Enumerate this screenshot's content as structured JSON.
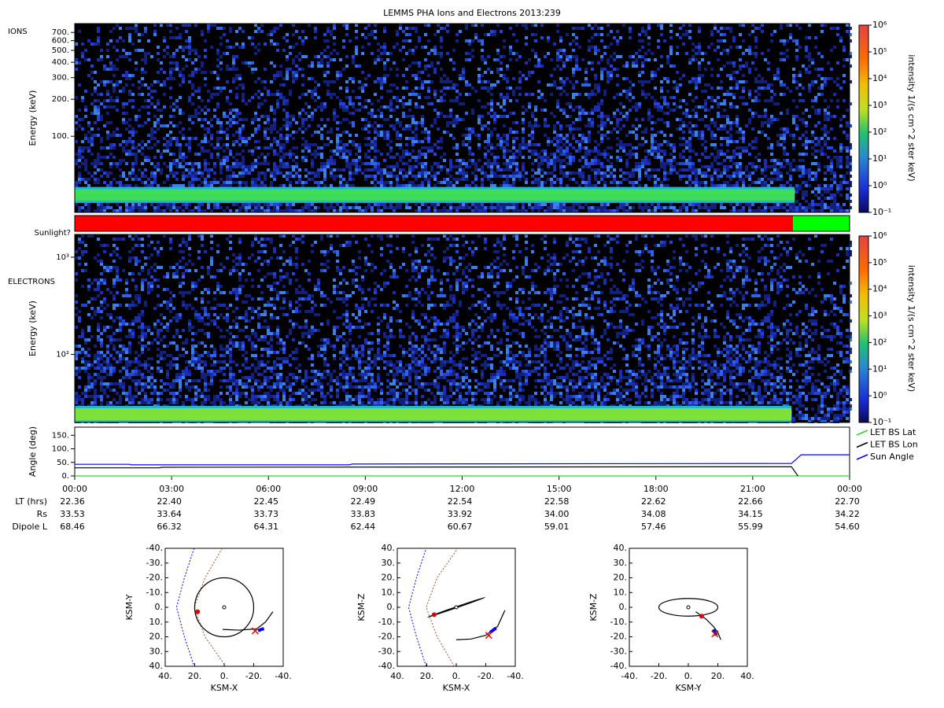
{
  "title": "LEMMS PHA Ions and Electrons  2013:239",
  "chart_data": [
    {
      "type": "spectrogram",
      "panel_label": "IONS",
      "ylabel": "Energy (keV)",
      "log_y": true,
      "xlim": [
        0,
        24
      ],
      "ylim": [
        24,
        826
      ],
      "yticks": [
        {
          "value": 100,
          "label": "100."
        },
        {
          "value": 200,
          "label": "200."
        },
        {
          "value": 300,
          "label": "300."
        },
        {
          "value": 400,
          "label": "400."
        },
        {
          "value": 500,
          "label": "500."
        },
        {
          "value": 600,
          "label": "600."
        },
        {
          "value": 700,
          "label": "700."
        }
      ],
      "band": {
        "energy": [
          30,
          37
        ],
        "end_hour": 22.3,
        "color": "#3fdc5a"
      },
      "colorbar": {
        "label": "intensity 1/(s cm^2 ster keV)",
        "lim": [
          0.1,
          1000000
        ],
        "ticks": [
          {
            "value": 0.1,
            "label": "10⁻¹"
          },
          {
            "value": 1,
            "label": "10⁰"
          },
          {
            "value": 10,
            "label": "10¹"
          },
          {
            "value": 100,
            "label": "10²"
          },
          {
            "value": 1000,
            "label": "10³"
          },
          {
            "value": 10000,
            "label": "10⁴"
          },
          {
            "value": 100000,
            "label": "10⁵"
          },
          {
            "value": 1000000,
            "label": "10⁶"
          }
        ]
      }
    },
    {
      "type": "timeline",
      "label": "Sunlight?",
      "xlim": [
        0,
        24
      ],
      "segments": [
        {
          "start": 0,
          "end": 22.25,
          "color": "#ff0000"
        },
        {
          "start": 22.25,
          "end": 24,
          "color": "#00ff00"
        }
      ]
    },
    {
      "type": "spectrogram",
      "panel_label": "ELECTRONS",
      "ylabel": "Energy (keV)",
      "log_y": true,
      "xlim": [
        0,
        24
      ],
      "ylim": [
        20,
        1714
      ],
      "yticks": [
        {
          "value": 100,
          "label": "10²"
        },
        {
          "value": 1000,
          "label": "10³"
        }
      ],
      "band": {
        "energy": [
          21,
          28
        ],
        "end_hour": 22.2,
        "color": "#7ee03a"
      },
      "colorbar": {
        "label": "intensity 1/(s cm^2 ster keV)",
        "lim": [
          0.1,
          1000000
        ],
        "ticks": [
          {
            "value": 0.1,
            "label": "10⁻¹"
          },
          {
            "value": 1,
            "label": "10⁰"
          },
          {
            "value": 10,
            "label": "10¹"
          },
          {
            "value": 100,
            "label": "10²"
          },
          {
            "value": 1000,
            "label": "10³"
          },
          {
            "value": 10000,
            "label": "10⁴"
          },
          {
            "value": 100000,
            "label": "10⁵"
          },
          {
            "value": 1000000,
            "label": "10⁶"
          }
        ]
      }
    },
    {
      "type": "line",
      "ylabel": "Angle (deg)",
      "xlim": [
        0,
        24
      ],
      "ylim": [
        0,
        180
      ],
      "yticks": [
        {
          "value": 0,
          "label": "0."
        },
        {
          "value": 50,
          "label": "50."
        },
        {
          "value": 100,
          "label": "100."
        },
        {
          "value": 150,
          "label": "150."
        }
      ],
      "xticks": [
        {
          "value": 0,
          "label": "00:00"
        },
        {
          "value": 3,
          "label": "03:00"
        },
        {
          "value": 6,
          "label": "06:00"
        },
        {
          "value": 9,
          "label": "09:00"
        },
        {
          "value": 12,
          "label": "12:00"
        },
        {
          "value": 15,
          "label": "15:00"
        },
        {
          "value": 18,
          "label": "18:00"
        },
        {
          "value": 21,
          "label": "21:00"
        },
        {
          "value": 24,
          "label": "00:00"
        }
      ],
      "series": [
        {
          "name": "LET BS Lat",
          "color": "#22dd22",
          "x": [
            0,
            24
          ],
          "values": [
            0,
            0
          ]
        },
        {
          "name": "LET BS Lon",
          "color": "#000000",
          "x": [
            0,
            2.6,
            2.7,
            22.2,
            22.4
          ],
          "values": [
            30,
            30,
            32,
            34,
            0
          ]
        },
        {
          "name": "Sun Angle",
          "color": "#0000ff",
          "x": [
            0,
            1.7,
            1.75,
            8.5,
            8.6,
            22.2,
            22.5,
            24
          ],
          "values": [
            43,
            43,
            41,
            41,
            44,
            46,
            78,
            78
          ]
        }
      ]
    },
    {
      "type": "orbit",
      "xlabel": "KSM-X",
      "ylabel": "KSM-Y",
      "xlim": [
        40,
        -40
      ],
      "ylim": [
        40,
        -40
      ],
      "xticks": [
        {
          "value": 40,
          "label": "40."
        },
        {
          "value": 20,
          "label": "20."
        },
        {
          "value": 0,
          "label": "0."
        },
        {
          "value": -20,
          "label": "-20."
        },
        {
          "value": -40,
          "label": "-40."
        }
      ],
      "yticks": [
        {
          "value": -40,
          "label": "-40."
        },
        {
          "value": -30,
          "label": "-30."
        },
        {
          "value": -20,
          "label": "-20."
        },
        {
          "value": -10,
          "label": "-10."
        },
        {
          "value": 0,
          "label": "0."
        },
        {
          "value": 10,
          "label": "10."
        },
        {
          "value": 20,
          "label": "20."
        },
        {
          "value": 30,
          "label": "30."
        },
        {
          "value": 40,
          "label": "40."
        }
      ],
      "boundaries": [
        {
          "color": "#0000ff",
          "x": [
            20.4,
            27,
            32.3,
            27,
            20.4
          ],
          "y": [
            -40,
            -20,
            0,
            20,
            40
          ]
        },
        {
          "color": "#a0522d",
          "x": [
            1.3,
            13,
            20.4,
            13,
            -1
          ],
          "y": [
            -40,
            -20,
            0,
            20,
            40
          ]
        }
      ],
      "planet": [
        0,
        0
      ],
      "ring": {
        "rx": 20,
        "ry": 20,
        "rot": 0
      },
      "trajectory": {
        "color": "#000000",
        "x": [
          1,
          -10,
          -22,
          -28,
          -33
        ],
        "y": [
          15,
          15.5,
          14.6,
          10,
          3
        ]
      },
      "spacecraft": {
        "color": "#0000ff",
        "x": [
          -23,
          -25,
          -27
        ],
        "y": [
          16,
          15,
          14.5
        ]
      },
      "moon": [
        18,
        3
      ],
      "marker": [
        -21,
        16
      ]
    },
    {
      "type": "orbit",
      "xlabel": "KSM-X",
      "ylabel": "KSM-Z",
      "xlim": [
        40,
        -40
      ],
      "ylim": [
        -40,
        40
      ],
      "xticks": [
        {
          "value": 40,
          "label": "40."
        },
        {
          "value": 20,
          "label": "20."
        },
        {
          "value": 0,
          "label": "0."
        },
        {
          "value": -20,
          "label": "-20."
        },
        {
          "value": -40,
          "label": "-40."
        }
      ],
      "yticks": [
        {
          "value": 40,
          "label": "40."
        },
        {
          "value": 30,
          "label": "30."
        },
        {
          "value": 20,
          "label": "20."
        },
        {
          "value": 10,
          "label": "10."
        },
        {
          "value": 0,
          "label": "0."
        },
        {
          "value": -10,
          "label": "-10."
        },
        {
          "value": -20,
          "label": "-20."
        },
        {
          "value": -30,
          "label": "-30."
        },
        {
          "value": -40,
          "label": "-40."
        }
      ],
      "boundaries": [
        {
          "color": "#0000ff",
          "x": [
            20.4,
            27,
            32.3,
            27,
            20.4
          ],
          "y": [
            -40,
            -20,
            0,
            20,
            40
          ]
        },
        {
          "color": "#a0522d",
          "x": [
            1.3,
            13,
            20.4,
            13,
            -1
          ],
          "y": [
            -40,
            -20,
            0,
            20,
            40
          ]
        }
      ],
      "planet": [
        0,
        0
      ],
      "ring": {
        "rx": 20.5,
        "ry": 0.3,
        "rot": -19
      },
      "trajectory": {
        "color": "#000000",
        "x": [
          0,
          -10,
          -20,
          -28,
          -33
        ],
        "y": [
          -22,
          -21.5,
          -19,
          -13,
          -2
        ]
      },
      "spacecraft": {
        "color": "#0000ff",
        "x": [
          -23,
          -25,
          -27
        ],
        "y": [
          -17,
          -15.5,
          -14
        ]
      },
      "moon": [
        15,
        -5
      ],
      "marker": [
        -22,
        -19
      ]
    },
    {
      "type": "orbit",
      "xlabel": "KSM-Y",
      "ylabel": "KSM-Z",
      "xlim": [
        -40,
        40
      ],
      "ylim": [
        -40,
        40
      ],
      "xticks": [
        {
          "value": -40,
          "label": "-40."
        },
        {
          "value": -20,
          "label": "-20."
        },
        {
          "value": 0,
          "label": "0."
        },
        {
          "value": 20,
          "label": "20."
        },
        {
          "value": 40,
          "label": "40."
        }
      ],
      "yticks": [
        {
          "value": 40,
          "label": "40."
        },
        {
          "value": 30,
          "label": "30."
        },
        {
          "value": 20,
          "label": "20."
        },
        {
          "value": 10,
          "label": "10."
        },
        {
          "value": 0,
          "label": "0."
        },
        {
          "value": -10,
          "label": "-10."
        },
        {
          "value": -20,
          "label": "-20."
        },
        {
          "value": -30,
          "label": "-30."
        },
        {
          "value": -40,
          "label": "-40."
        }
      ],
      "boundaries": [],
      "planet": [
        0,
        0
      ],
      "ring": {
        "rx": 20,
        "ry": 6,
        "rot": 0
      },
      "trajectory": {
        "color": "#000000",
        "x": [
          5,
          12,
          17,
          20,
          22
        ],
        "y": [
          -3,
          -8,
          -13,
          -17,
          -22
        ]
      },
      "spacecraft": {
        "color": "#0000ff",
        "x": [
          17,
          18,
          19
        ],
        "y": [
          -15,
          -17,
          -19
        ]
      },
      "moon": [
        9,
        -6
      ],
      "marker": [
        18,
        -18
      ]
    }
  ],
  "ephemeris": {
    "rows": [
      {
        "label": "LT (hrs)",
        "values": [
          "22.36",
          "22.40",
          "22.45",
          "22.49",
          "22.54",
          "22.58",
          "22.62",
          "22.66",
          "22.70"
        ]
      },
      {
        "label": "Rs",
        "values": [
          "33.53",
          "33.64",
          "33.73",
          "33.83",
          "33.92",
          "34.00",
          "34.08",
          "34.15",
          "34.22"
        ]
      },
      {
        "label": "Dipole L",
        "values": [
          "68.46",
          "66.32",
          "64.31",
          "62.44",
          "60.67",
          "59.01",
          "57.46",
          "55.99",
          "54.60"
        ]
      }
    ]
  }
}
